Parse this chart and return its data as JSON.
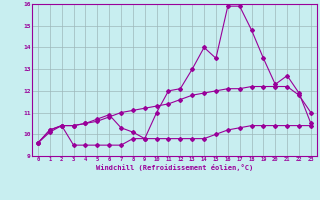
{
  "x": [
    0,
    1,
    2,
    3,
    4,
    5,
    6,
    7,
    8,
    9,
    10,
    11,
    12,
    13,
    14,
    15,
    16,
    17,
    18,
    19,
    20,
    21,
    22,
    23
  ],
  "line1": [
    9.6,
    10.1,
    10.4,
    9.5,
    9.5,
    9.5,
    9.5,
    9.5,
    9.8,
    9.8,
    9.8,
    9.8,
    9.8,
    9.8,
    9.8,
    10.0,
    10.2,
    10.3,
    10.4,
    10.4,
    10.4,
    10.4,
    10.4,
    10.4
  ],
  "line2": [
    9.6,
    10.2,
    10.4,
    10.4,
    10.5,
    10.6,
    10.8,
    11.0,
    11.1,
    11.2,
    11.3,
    11.4,
    11.6,
    11.8,
    11.9,
    12.0,
    12.1,
    12.1,
    12.2,
    12.2,
    12.2,
    12.2,
    11.8,
    11.0
  ],
  "line3": [
    9.6,
    10.2,
    10.4,
    10.4,
    10.5,
    10.7,
    10.9,
    10.3,
    10.1,
    9.8,
    11.0,
    12.0,
    12.1,
    13.0,
    14.0,
    13.5,
    15.9,
    15.9,
    14.8,
    13.5,
    12.3,
    12.7,
    11.9,
    10.5
  ],
  "line_color": "#990099",
  "bg_color": "#c8eef0",
  "grid_color": "#9db8ba",
  "xlabel": "Windchill (Refroidissement éolien,°C)",
  "ylim": [
    9,
    16
  ],
  "xlim": [
    -0.5,
    23.5
  ],
  "yticks": [
    9,
    10,
    11,
    12,
    13,
    14,
    15,
    16
  ],
  "xticks": [
    0,
    1,
    2,
    3,
    4,
    5,
    6,
    7,
    8,
    9,
    10,
    11,
    12,
    13,
    14,
    15,
    16,
    17,
    18,
    19,
    20,
    21,
    22,
    23
  ],
  "figsize": [
    3.2,
    2.0
  ],
  "dpi": 100
}
